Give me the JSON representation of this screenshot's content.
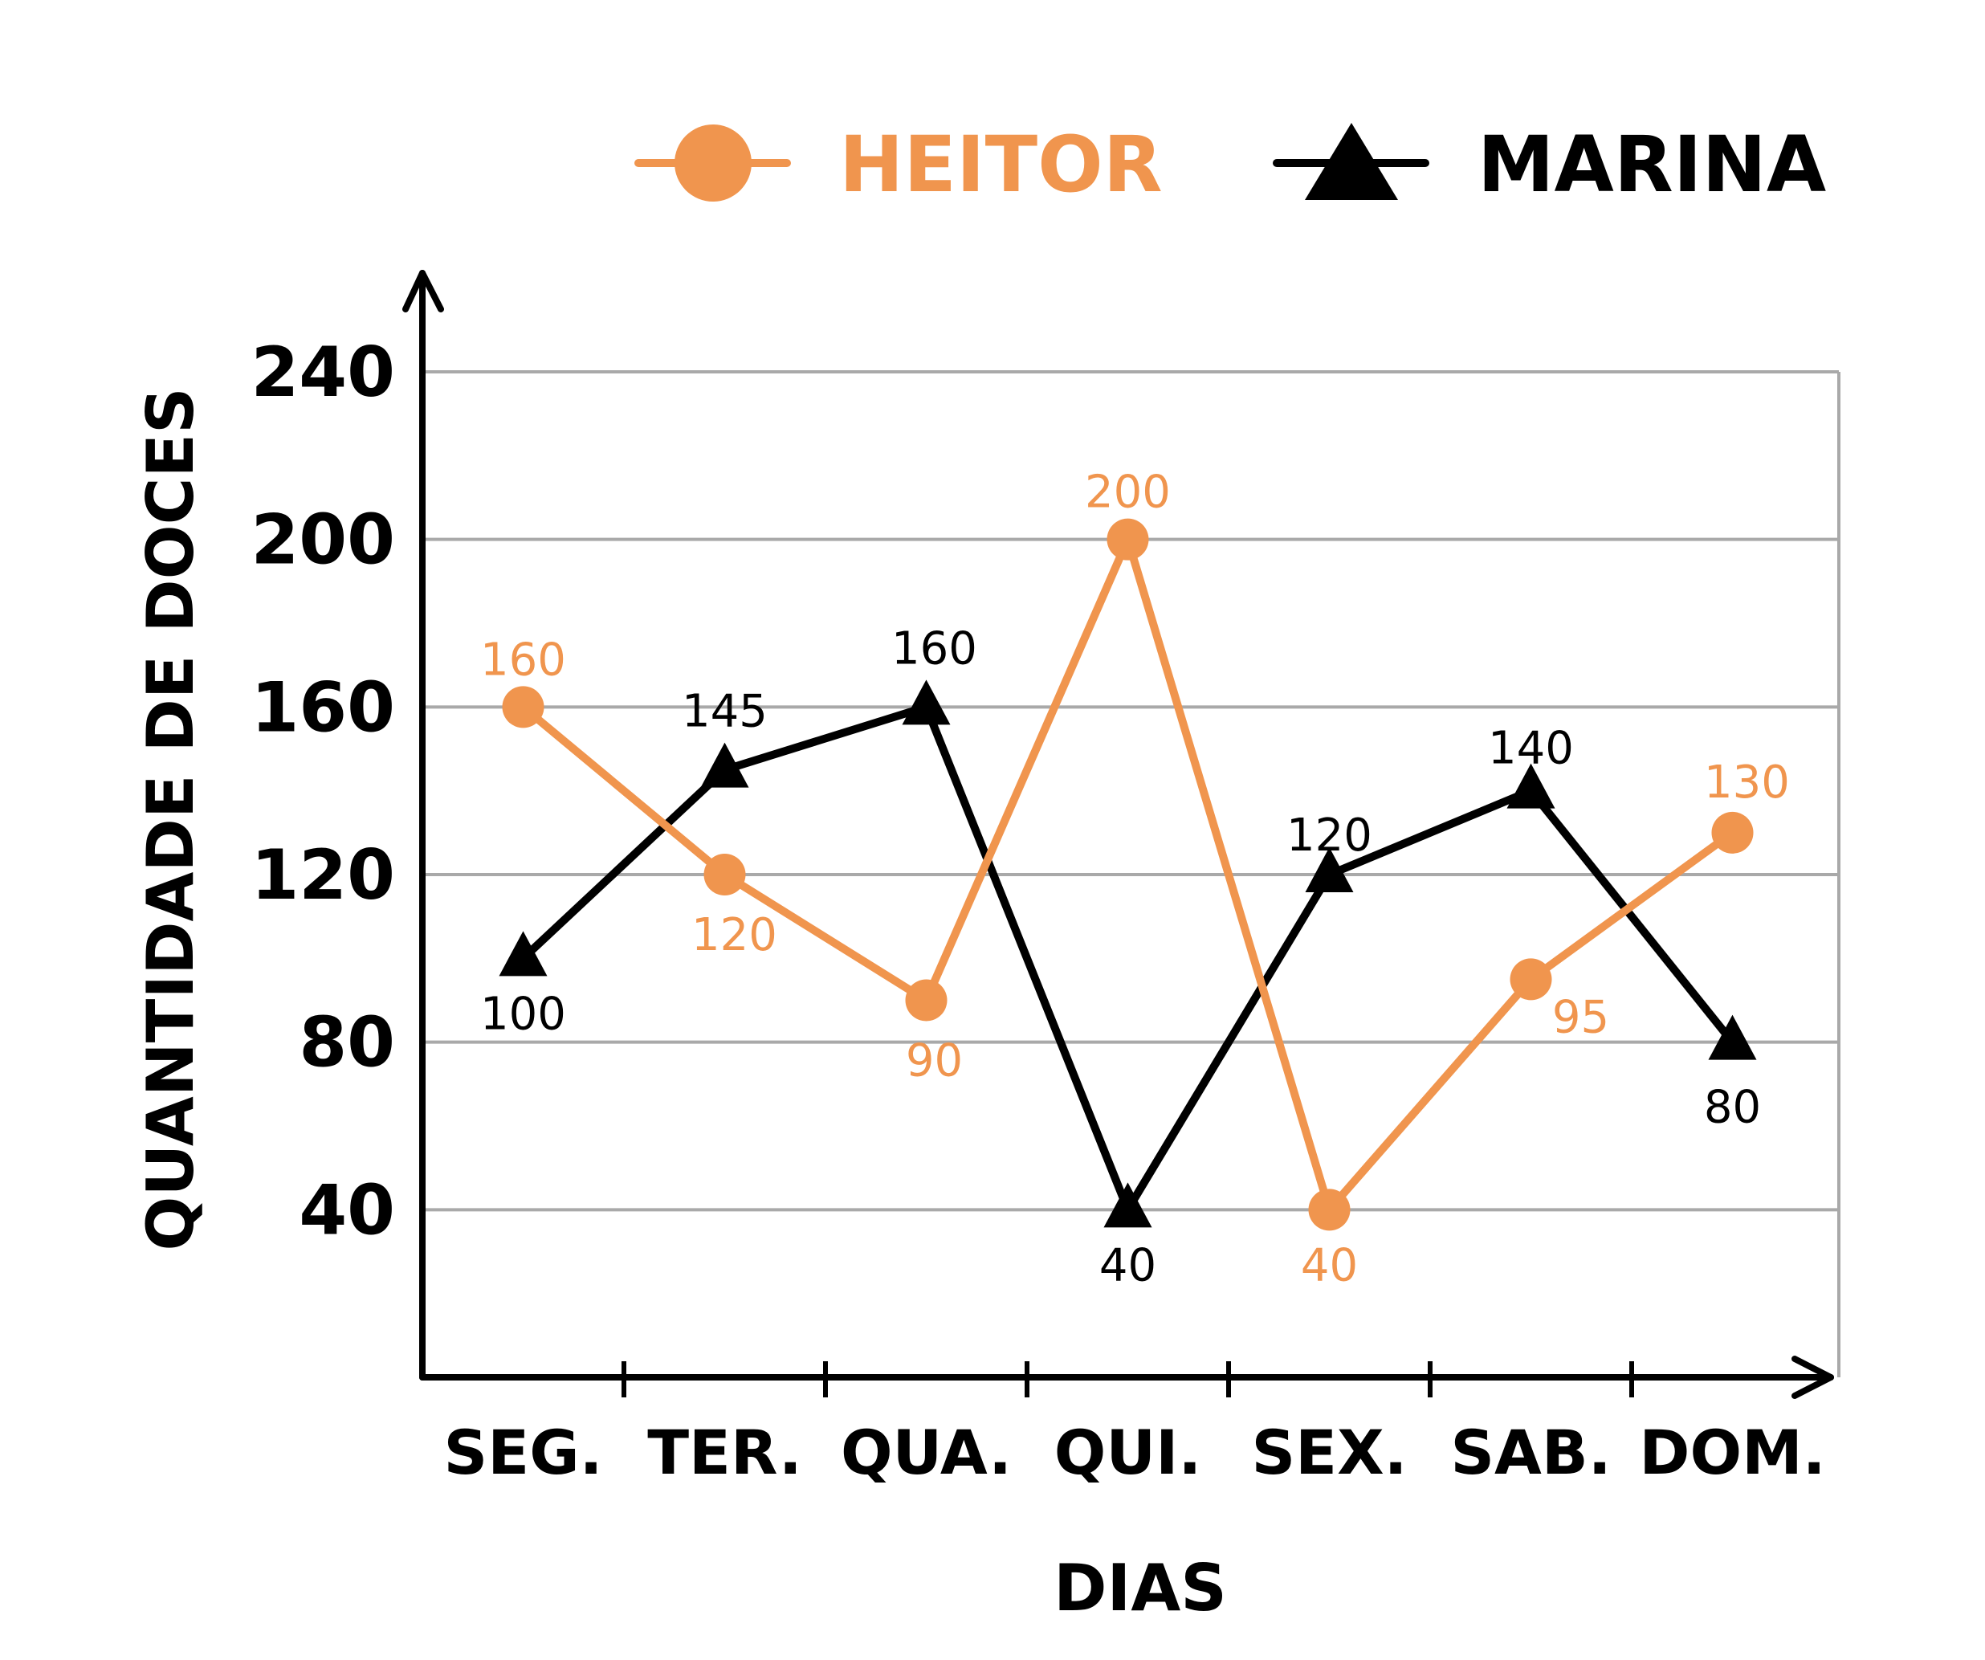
{
  "chart_data": {
    "type": "line",
    "title": "",
    "xlabel": "DIAS",
    "ylabel": "QUANTIDADE DE DOCES",
    "categories": [
      "SEG.",
      "TER.",
      "QUA.",
      "QUI.",
      "SEX.",
      "SAB.",
      "DOM."
    ],
    "yticks": [
      "40",
      "80",
      "120",
      "160",
      "200",
      "240"
    ],
    "ylim": [
      0,
      240
    ],
    "grid": true,
    "legend_position": "top",
    "series": [
      {
        "name": "HEITOR",
        "marker": "circle",
        "color": "#f0954e",
        "values": [
          160,
          120,
          90,
          200,
          40,
          95,
          130
        ],
        "labels": [
          "160",
          "120",
          "90",
          "200",
          "40",
          "95",
          "130"
        ]
      },
      {
        "name": "MARINA",
        "marker": "triangle",
        "color": "#000000",
        "values": [
          100,
          145,
          160,
          40,
          120,
          140,
          80
        ],
        "labels": [
          "100",
          "145",
          "160",
          "40",
          "120",
          "140",
          "80"
        ]
      }
    ]
  }
}
